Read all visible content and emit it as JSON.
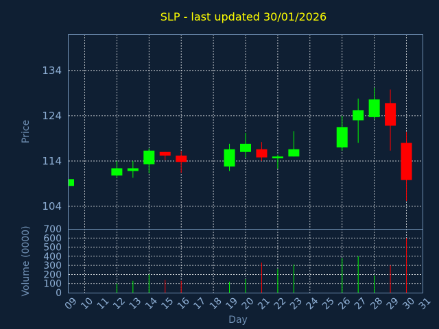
{
  "chart_data": {
    "type": "candlestick",
    "title": "SLP - last updated 30/01/2026",
    "xlabel": "Day",
    "ylabel": "Price",
    "volume_label": "Volume (0000)",
    "x_ticks": [
      "09",
      "10",
      "11",
      "12",
      "13",
      "14",
      "15",
      "16",
      "17",
      "18",
      "19",
      "20",
      "21",
      "22",
      "23",
      "24",
      "25",
      "26",
      "27",
      "28",
      "29",
      "30",
      "31"
    ],
    "y_ticks": [
      104,
      114,
      124,
      134
    ],
    "ylim": [
      99,
      142
    ],
    "volume_ticks": [
      0,
      100,
      200,
      300,
      400,
      500,
      600,
      700
    ],
    "volume_ylim": [
      0,
      700
    ],
    "up_color": "#00ff00",
    "down_color": "#ff0000",
    "candles": [
      {
        "day": "09",
        "open": 108.5,
        "close": 110.0,
        "high": 110.0,
        "low": 108.5,
        "volume": 0
      },
      {
        "day": "12",
        "open": 110.8,
        "close": 112.4,
        "high": 114.0,
        "low": 110.3,
        "volume": 100
      },
      {
        "day": "13",
        "open": 111.8,
        "close": 112.4,
        "high": 114.0,
        "low": 110.3,
        "volume": 130
      },
      {
        "day": "14",
        "open": 113.3,
        "close": 116.3,
        "high": 116.8,
        "low": 111.3,
        "volume": 200
      },
      {
        "day": "15",
        "open": 116.0,
        "close": 115.2,
        "high": 116.0,
        "low": 114.2,
        "volume": 140
      },
      {
        "day": "16",
        "open": 115.2,
        "close": 113.8,
        "high": 116.2,
        "low": 111.4,
        "volume": 130
      },
      {
        "day": "19",
        "open": 112.8,
        "close": 116.6,
        "high": 117.8,
        "low": 111.8,
        "volume": 120
      },
      {
        "day": "20",
        "open": 116.0,
        "close": 117.8,
        "high": 120.2,
        "low": 114.8,
        "volume": 150
      },
      {
        "day": "21",
        "open": 116.6,
        "close": 114.8,
        "high": 118.2,
        "low": 114.0,
        "volume": 330
      },
      {
        "day": "22",
        "open": 114.6,
        "close": 115.0,
        "high": 115.4,
        "low": 112.3,
        "volume": 260
      },
      {
        "day": "23",
        "open": 115.0,
        "close": 116.6,
        "high": 120.6,
        "low": 115.0,
        "volume": 310
      },
      {
        "day": "26",
        "open": 117.0,
        "close": 121.5,
        "high": 124.0,
        "low": 116.3,
        "volume": 380
      },
      {
        "day": "27",
        "open": 123.0,
        "close": 125.2,
        "high": 127.8,
        "low": 118.0,
        "volume": 400
      },
      {
        "day": "28",
        "open": 123.7,
        "close": 127.6,
        "high": 130.2,
        "low": 123.2,
        "volume": 190
      },
      {
        "day": "29",
        "open": 126.8,
        "close": 121.8,
        "high": 129.8,
        "low": 116.3,
        "volume": 300
      },
      {
        "day": "30",
        "open": 118.0,
        "close": 109.8,
        "high": 120.4,
        "low": 105.2,
        "volume": 600
      }
    ]
  }
}
